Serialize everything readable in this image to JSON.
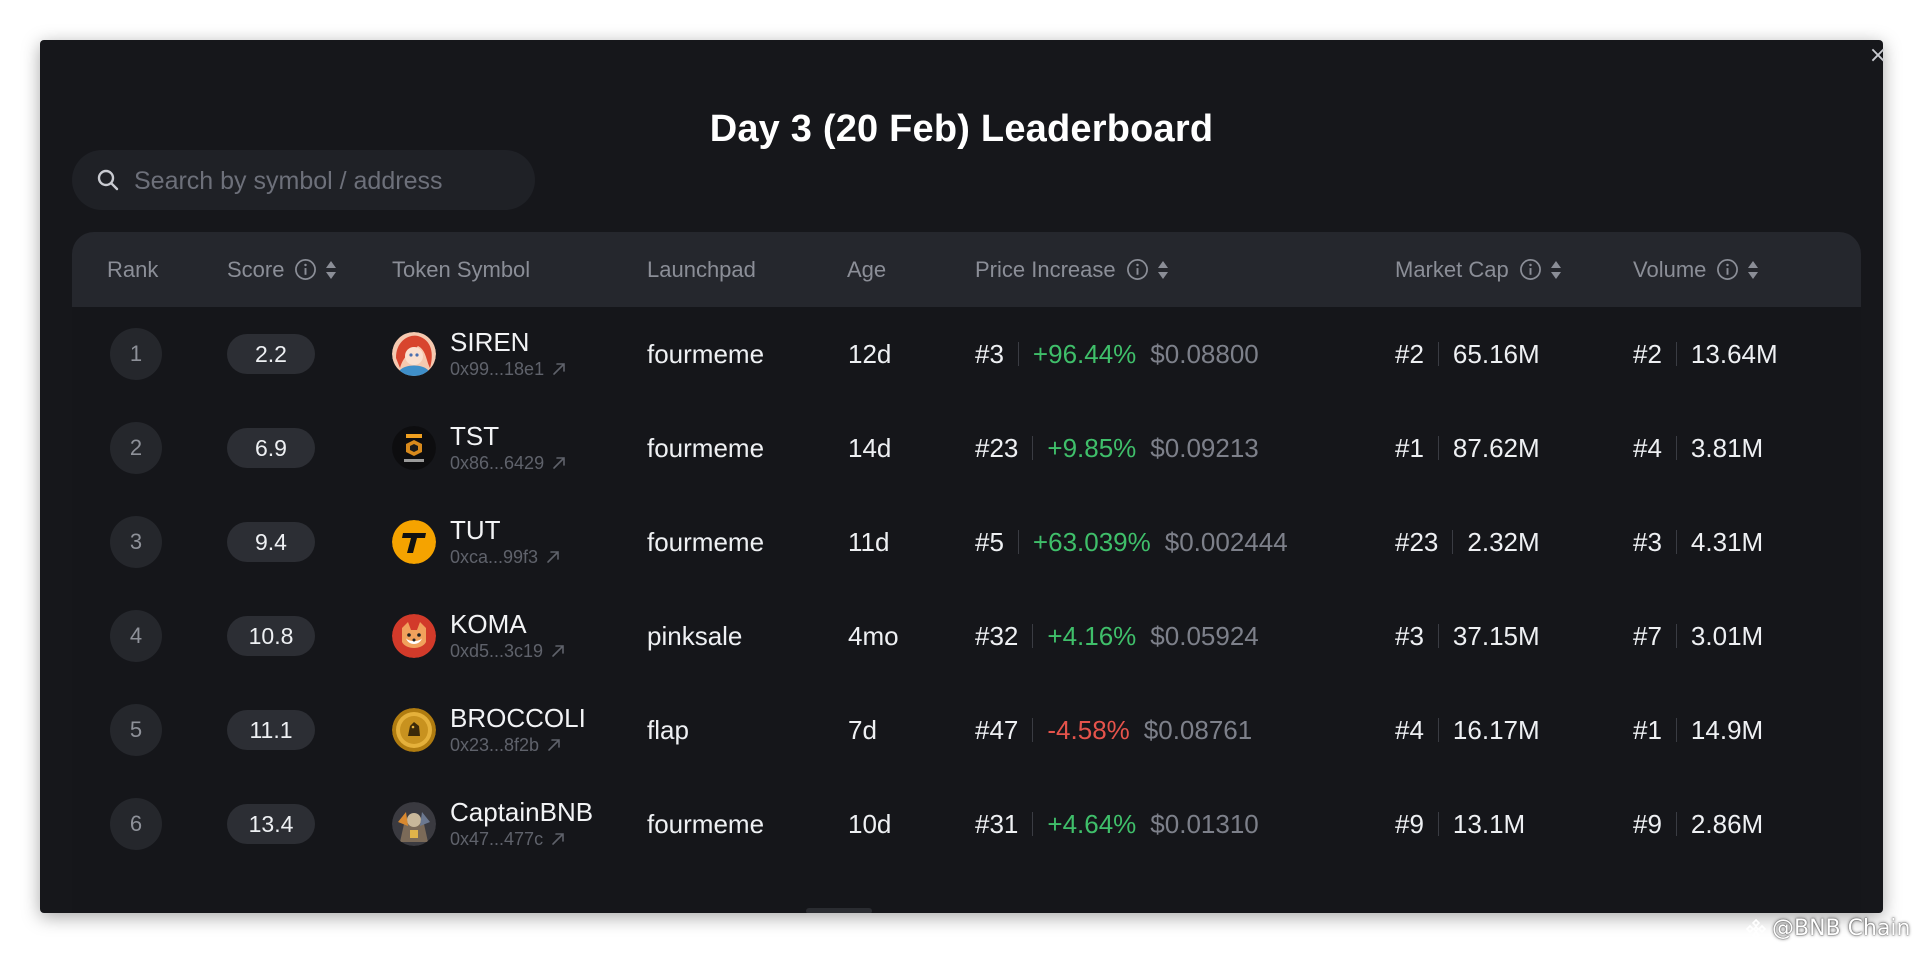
{
  "modal": {
    "title": "Day 3 (20 Feb) Leaderboard",
    "close_label": "×"
  },
  "search": {
    "placeholder": "Search by symbol / address",
    "value": ""
  },
  "columns": {
    "rank": "Rank",
    "score": "Score",
    "token_symbol": "Token Symbol",
    "launchpad": "Launchpad",
    "age": "Age",
    "price_increase": "Price Increase",
    "market_cap": "Market Cap",
    "volume": "Volume"
  },
  "rows": [
    {
      "rank": "1",
      "score": "2.2",
      "symbol": "SIREN",
      "address": "0x99...18e1",
      "launchpad": "fourmeme",
      "age": "12d",
      "price_rank": "#3",
      "price_change": "+96.44%",
      "price": "$0.08800",
      "mcap_rank": "#2",
      "mcap": "65.16M",
      "vol_rank": "#2",
      "vol": "13.64M"
    },
    {
      "rank": "2",
      "score": "6.9",
      "symbol": "TST",
      "address": "0x86...6429",
      "launchpad": "fourmeme",
      "age": "14d",
      "price_rank": "#23",
      "price_change": "+9.85%",
      "price": "$0.09213",
      "mcap_rank": "#1",
      "mcap": "87.62M",
      "vol_rank": "#4",
      "vol": "3.81M"
    },
    {
      "rank": "3",
      "score": "9.4",
      "symbol": "TUT",
      "address": "0xca...99f3",
      "launchpad": "fourmeme",
      "age": "11d",
      "price_rank": "#5",
      "price_change": "+63.039%",
      "price": "$0.002444",
      "mcap_rank": "#23",
      "mcap": "2.32M",
      "vol_rank": "#3",
      "vol": "4.31M"
    },
    {
      "rank": "4",
      "score": "10.8",
      "symbol": "KOMA",
      "address": "0xd5...3c19",
      "launchpad": "pinksale",
      "age": "4mo",
      "price_rank": "#32",
      "price_change": "+4.16%",
      "price": "$0.05924",
      "mcap_rank": "#3",
      "mcap": "37.15M",
      "vol_rank": "#7",
      "vol": "3.01M"
    },
    {
      "rank": "5",
      "score": "11.1",
      "symbol": "BROCCOLI",
      "address": "0x23...8f2b",
      "launchpad": "flap",
      "age": "7d",
      "price_rank": "#47",
      "price_change": "-4.58%",
      "price": "$0.08761",
      "mcap_rank": "#4",
      "mcap": "16.17M",
      "vol_rank": "#1",
      "vol": "14.9M"
    },
    {
      "rank": "6",
      "score": "13.4",
      "symbol": "CaptainBNB",
      "address": "0x47...477c",
      "launchpad": "fourmeme",
      "age": "10d",
      "price_rank": "#31",
      "price_change": "+4.64%",
      "price": "$0.01310",
      "mcap_rank": "#9",
      "mcap": "13.1M",
      "vol_rank": "#9",
      "vol": "2.86M"
    }
  ],
  "avatar_icons": [
    "siren-avatar-icon",
    "tst-avatar-icon",
    "tut-avatar-icon",
    "koma-avatar-icon",
    "broccoli-avatar-icon",
    "captainbnb-avatar-icon"
  ],
  "avatar_text": {
    "tut": "T"
  },
  "watermark": "@BNB Chain",
  "colors": {
    "background": "#16171b",
    "header": "#25272d",
    "positive": "#3fbf6a",
    "negative": "#e5534b",
    "muted": "#7d808a"
  }
}
